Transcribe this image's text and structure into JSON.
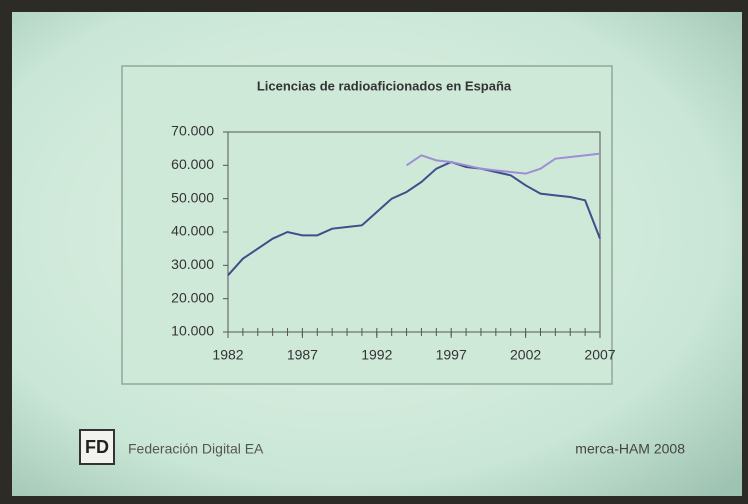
{
  "chart_data": {
    "type": "line",
    "title": "Licencias de radioaficionados en España",
    "x": [
      1982,
      1983,
      1984,
      1985,
      1986,
      1987,
      1988,
      1989,
      1990,
      1991,
      1992,
      1993,
      1994,
      1995,
      1996,
      1997,
      1998,
      1999,
      2000,
      2001,
      2002,
      2003,
      2004,
      2005,
      2006,
      2007
    ],
    "series": [
      {
        "color": "#3e4f8a",
        "values": [
          27000,
          32000,
          35000,
          38000,
          40000,
          39000,
          39000,
          41000,
          41500,
          42000,
          46000,
          50000,
          52000,
          55000,
          59000,
          61000,
          59500,
          59000,
          58000,
          57000,
          54000,
          51500,
          51000,
          50500,
          49500,
          38000
        ]
      },
      {
        "color": "#9c8fd6",
        "values": [
          null,
          null,
          null,
          null,
          null,
          null,
          null,
          null,
          null,
          null,
          null,
          null,
          60000,
          63000,
          61500,
          61000,
          60000,
          59000,
          58500,
          58000,
          57500,
          59000,
          62000,
          62500,
          63000,
          63500
        ]
      }
    ],
    "xlim": [
      1982,
      2007
    ],
    "xticks": [
      1982,
      1987,
      1992,
      1997,
      2002,
      2007
    ],
    "ylim": [
      10000,
      70000
    ],
    "yticks": [
      {
        "value": 10000,
        "label": "10.000"
      },
      {
        "value": 20000,
        "label": "20.000"
      },
      {
        "value": 30000,
        "label": "30.000"
      },
      {
        "value": 40000,
        "label": "40.000"
      },
      {
        "value": 50000,
        "label": "50.000"
      },
      {
        "value": 60000,
        "label": "60.000"
      },
      {
        "value": 70000,
        "label": "70.000"
      }
    ]
  },
  "footer": {
    "logo": "FD",
    "left": "Federación Digital EA",
    "right": "merca-HAM 2008"
  }
}
